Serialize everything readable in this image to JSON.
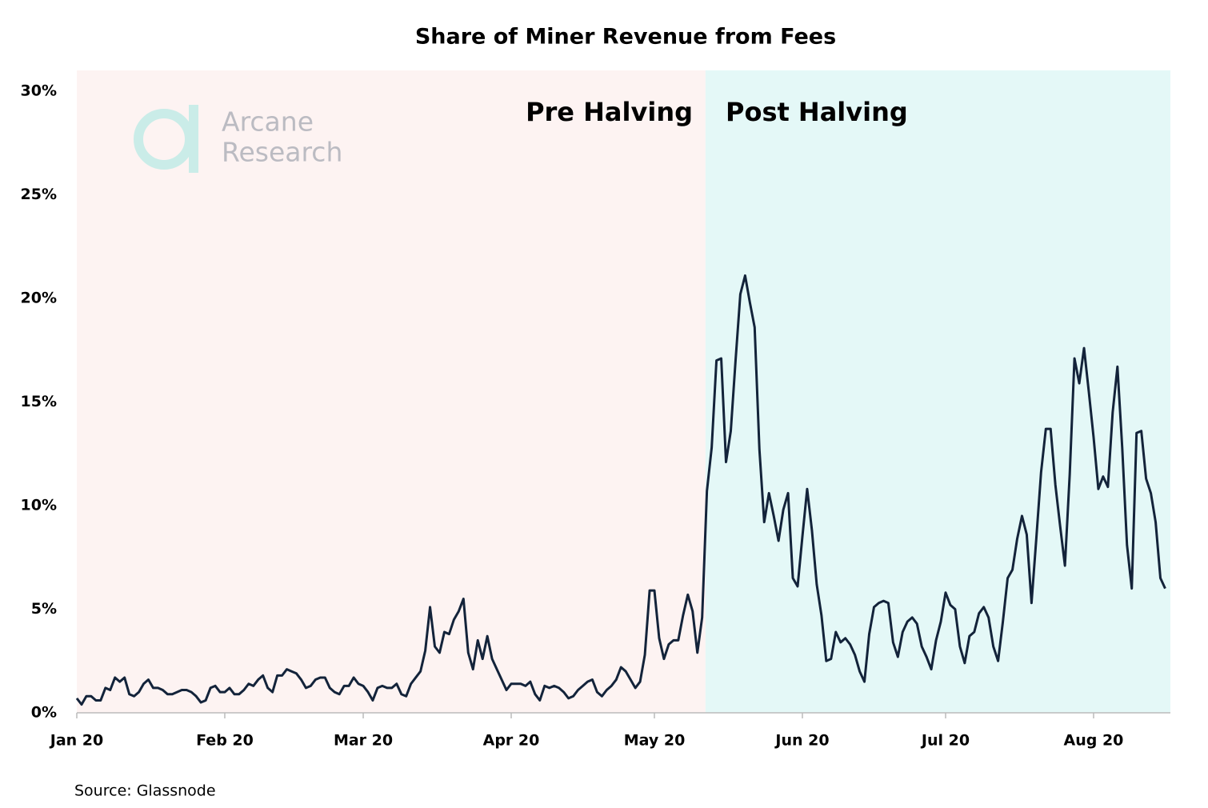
{
  "chart_data": {
    "type": "line",
    "title": "Share of Miner Revenue from Fees",
    "source": "Source: Glassnode",
    "annotations": [
      "Pre Halving",
      "Post Halving"
    ],
    "watermark": [
      "Arcane",
      "Research"
    ],
    "categories": [
      "Jan 20",
      null,
      null,
      null,
      null,
      null,
      null,
      null,
      null,
      null,
      null,
      null,
      null,
      null,
      null,
      null,
      null,
      null,
      null,
      null,
      null,
      null,
      null,
      null,
      null,
      null,
      null,
      null,
      null,
      null,
      null,
      "Feb 20",
      null,
      null,
      null,
      null,
      null,
      null,
      null,
      null,
      null,
      null,
      null,
      null,
      null,
      null,
      null,
      null,
      null,
      null,
      null,
      null,
      null,
      null,
      null,
      null,
      null,
      null,
      null,
      null,
      "Mar 20",
      null,
      null,
      null,
      null,
      null,
      null,
      null,
      null,
      null,
      null,
      null,
      null,
      null,
      null,
      null,
      null,
      null,
      null,
      null,
      null,
      null,
      null,
      null,
      null,
      null,
      null,
      null,
      null,
      null,
      null,
      "Apr 20",
      null,
      null,
      null,
      null,
      null,
      null,
      null,
      null,
      null,
      null,
      null,
      null,
      null,
      null,
      null,
      null,
      null,
      null,
      null,
      null,
      null,
      null,
      null,
      null,
      null,
      null,
      null,
      null,
      null,
      "May 20",
      null,
      null,
      null,
      null,
      null,
      null,
      null,
      null,
      null,
      null,
      null,
      null,
      null,
      null,
      null,
      null,
      null,
      null,
      null,
      null,
      null,
      null,
      null,
      null,
      null,
      null,
      null,
      null,
      null,
      null,
      "Jun 20",
      null,
      null,
      null,
      null,
      null,
      null,
      null,
      null,
      null,
      null,
      null,
      null,
      null,
      null,
      null,
      null,
      null,
      null,
      null,
      null,
      null,
      null,
      null,
      null,
      null,
      null,
      null,
      null,
      null,
      "Jul 20",
      null,
      null,
      null,
      null,
      null,
      null,
      null,
      null,
      null,
      null,
      null,
      null,
      null,
      null,
      null,
      null,
      null,
      null,
      null,
      null,
      null,
      null,
      null,
      null,
      null,
      null,
      null,
      null,
      null,
      null,
      "Aug 20",
      null,
      null,
      null,
      null,
      null,
      null,
      null,
      null,
      null,
      null,
      null,
      null,
      null,
      null,
      null
    ],
    "series": [
      {
        "name": "Share of Miner Revenue from Fees",
        "color": "#13233a",
        "values": [
          0.7,
          0.4,
          0.8,
          0.8,
          0.6,
          0.6,
          1.2,
          1.1,
          1.7,
          1.5,
          1.7,
          0.9,
          0.8,
          1.0,
          1.4,
          1.6,
          1.2,
          1.2,
          1.1,
          0.9,
          0.9,
          1.0,
          1.1,
          1.1,
          1.0,
          0.8,
          0.5,
          0.6,
          1.2,
          1.3,
          1.0,
          1.0,
          1.2,
          0.9,
          0.9,
          1.1,
          1.4,
          1.3,
          1.6,
          1.8,
          1.2,
          1.0,
          1.8,
          1.8,
          2.1,
          2.0,
          1.9,
          1.6,
          1.2,
          1.3,
          1.6,
          1.7,
          1.7,
          1.2,
          1.0,
          0.9,
          1.3,
          1.3,
          1.7,
          1.4,
          1.3,
          1.0,
          0.6,
          1.2,
          1.3,
          1.2,
          1.2,
          1.4,
          0.9,
          0.8,
          1.4,
          1.7,
          2.0,
          3.0,
          5.1,
          3.2,
          2.9,
          3.9,
          3.8,
          4.5,
          4.9,
          5.5,
          2.9,
          2.1,
          3.5,
          2.6,
          3.7,
          2.6,
          2.1,
          1.6,
          1.1,
          1.4,
          1.4,
          1.4,
          1.3,
          1.5,
          0.9,
          0.6,
          1.3,
          1.2,
          1.3,
          1.2,
          1.0,
          0.7,
          0.8,
          1.1,
          1.3,
          1.5,
          1.6,
          1.0,
          0.8,
          1.1,
          1.3,
          1.6,
          2.2,
          2.0,
          1.6,
          1.2,
          1.5,
          2.8,
          5.9,
          5.9,
          3.6,
          2.6,
          3.3,
          3.5,
          3.5,
          4.7,
          5.7,
          4.9,
          2.9,
          4.6,
          10.7,
          12.8,
          17.0,
          17.1,
          12.1,
          13.6,
          17.0,
          20.2,
          21.1,
          19.8,
          18.6,
          12.7,
          9.2,
          10.6,
          9.5,
          8.3,
          9.8,
          10.6,
          6.5,
          6.1,
          8.5,
          10.8,
          8.8,
          6.2,
          4.7,
          2.5,
          2.6,
          3.9,
          3.4,
          3.6,
          3.3,
          2.8,
          2.0,
          1.5,
          3.8,
          5.1,
          5.3,
          5.4,
          5.3,
          3.4,
          2.7,
          3.9,
          4.4,
          4.6,
          4.3,
          3.2,
          2.7,
          2.1,
          3.5,
          4.4,
          5.8,
          5.2,
          5.0,
          3.2,
          2.4,
          3.7,
          3.9,
          4.8,
          5.1,
          4.6,
          3.2,
          2.5,
          4.4,
          6.5,
          6.9,
          8.4,
          9.5,
          8.6,
          5.3,
          8.4,
          11.6,
          13.7,
          13.7,
          11.0,
          9.0,
          7.1,
          11.5,
          17.1,
          15.9,
          17.6,
          15.5,
          13.3,
          10.8,
          11.4,
          10.9,
          14.5,
          16.7,
          12.8,
          8.1,
          6.0,
          13.5,
          13.6,
          11.3,
          10.6,
          9.2,
          6.5,
          6.0
        ]
      }
    ],
    "ylim": [
      0,
      31
    ],
    "yticks": [
      {
        "value": 0,
        "label": "0%"
      },
      {
        "value": 5,
        "label": "5%"
      },
      {
        "value": 10,
        "label": "10%"
      },
      {
        "value": 15,
        "label": "15%"
      },
      {
        "value": 20,
        "label": "20%"
      },
      {
        "value": 25,
        "label": "25%"
      },
      {
        "value": 30,
        "label": "30%"
      }
    ],
    "region_colors": [
      "#fdf3f2",
      "#e4f8f7"
    ],
    "grid": false
  }
}
